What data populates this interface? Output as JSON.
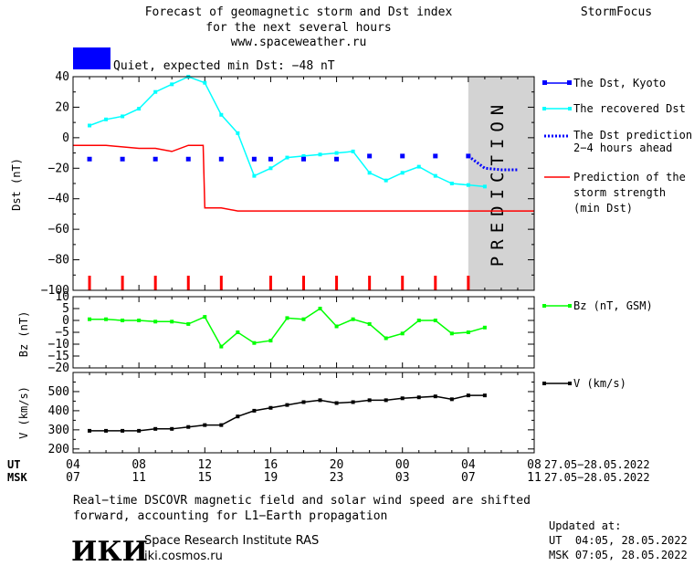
{
  "header": {
    "title_line1": "Forecast of geomagnetic storm and Dst index",
    "title_line2": "for the next several hours",
    "url": "www.spaceweather.ru",
    "brand": "StormFocus",
    "status_text": "Quiet, expected min Dst: −48 nT",
    "status_color": "#0000ff"
  },
  "prediction_label": "PREDICTION",
  "legend": {
    "dst_kyoto": "The Dst, Kyoto",
    "dst_recovered": "The recovered Dst",
    "dst_prediction_1": "The Dst prediction",
    "dst_prediction_2": "2−4 hours ahead",
    "storm_1": "Prediction of the",
    "storm_2": "storm strength",
    "storm_3": "(min Dst)",
    "bz": "Bz (nT, GSM)",
    "v": "V (km/s)"
  },
  "axes": {
    "dst_ylabel": "Dst (nT)",
    "bz_ylabel": "Bz (nT)",
    "v_ylabel": "V (km/s)",
    "ut_label": "UT",
    "msk_label": "MSK",
    "ut_ticks": [
      "04",
      "08",
      "12",
      "16",
      "20",
      "00",
      "04",
      "08"
    ],
    "msk_ticks": [
      "07",
      "11",
      "15",
      "19",
      "23",
      "03",
      "07",
      "11"
    ],
    "ut_date": "27.05−28.05.2022",
    "msk_date": "27.05−28.05.2022"
  },
  "footer": {
    "note_line1": "Real−time DSCOVR magnetic field and solar wind speed are shifted",
    "note_line2": "forward, accounting for L1−Earth propagation",
    "logo": "ИКИ",
    "institute": "Space Research Institute RAS",
    "site": "iki.cosmos.ru",
    "updated_label": "Updated at:",
    "updated_ut": "UT  04:05, 28.05.2022",
    "updated_msk": "MSK 07:05, 28.05.2022"
  },
  "colors": {
    "dst_kyoto": "#0000ff",
    "dst_recovered": "#00ffff",
    "dst_prediction": "#0000ff",
    "storm": "#ff0000",
    "bz": "#00ff00",
    "v": "#000000",
    "prediction_band": "#d3d3d3",
    "ticks": "#ff0000"
  },
  "chart_data": [
    {
      "type": "line",
      "ylabel": "Dst (nT)",
      "xlim": [
        4,
        32
      ],
      "ylim": [
        -100,
        40
      ],
      "prediction_band": [
        28.0,
        32.0
      ],
      "series": [
        {
          "name": "The Dst, Kyoto",
          "style": "markers",
          "x": [
            5,
            7,
            9,
            11,
            13,
            15,
            16,
            18,
            20,
            22,
            24,
            26,
            28
          ],
          "y": [
            -14,
            -14,
            -14,
            -14,
            -14,
            -14,
            -14,
            -14,
            -14,
            -12,
            -12,
            -12,
            -12
          ]
        },
        {
          "name": "The recovered Dst",
          "style": "line-markers",
          "x": [
            5,
            6,
            7,
            8,
            9,
            10,
            11,
            12,
            13,
            14,
            15,
            16,
            17,
            18,
            19,
            20,
            21,
            22,
            23,
            24,
            25,
            26,
            27,
            28,
            29
          ],
          "y": [
            8,
            12,
            14,
            19,
            30,
            35,
            40,
            36,
            15,
            3,
            -25,
            -20,
            -13,
            -12,
            -11,
            -10,
            -9,
            -23,
            -28,
            -23,
            -19,
            -25,
            -30,
            -31,
            -32
          ]
        },
        {
          "name": "The Dst prediction 2−4 hours ahead",
          "style": "dotted",
          "x": [
            28,
            29,
            30,
            31
          ],
          "y": [
            -12,
            -20,
            -21,
            -21
          ]
        },
        {
          "name": "Prediction of the storm strength (min Dst)",
          "style": "line",
          "x": [
            4,
            6,
            8,
            9,
            10,
            11,
            11.9,
            12,
            13,
            14,
            32
          ],
          "y": [
            -5,
            -5,
            -7,
            -7,
            -9,
            -5,
            -5,
            -46,
            -46,
            -48,
            -48
          ]
        }
      ],
      "storm_ticks": [
        5,
        7,
        9,
        11,
        13,
        16,
        18,
        20,
        22,
        24,
        26,
        28
      ]
    },
    {
      "type": "line",
      "ylabel": "Bz (nT)",
      "xlim": [
        4,
        32
      ],
      "ylim": [
        -20,
        10
      ],
      "series": [
        {
          "name": "Bz (nT, GSM)",
          "x": [
            5,
            6,
            7,
            8,
            9,
            10,
            11,
            12,
            13,
            14,
            15,
            16,
            17,
            18,
            19,
            20,
            21,
            22,
            23,
            24,
            25,
            26,
            27,
            28,
            29
          ],
          "y": [
            0.5,
            0.5,
            0,
            0,
            -0.5,
            -0.5,
            -1.5,
            1.5,
            -11,
            -5,
            -9.5,
            -8.5,
            1,
            0.5,
            5,
            -2.5,
            0.5,
            -1.5,
            -7.5,
            -5.5,
            0,
            0,
            -5.5,
            -5,
            -3
          ]
        }
      ]
    },
    {
      "type": "line",
      "ylabel": "V (km/s)",
      "xlim": [
        4,
        32
      ],
      "ylim": [
        180,
        600
      ],
      "series": [
        {
          "name": "V (km/s)",
          "x": [
            5,
            6,
            7,
            8,
            9,
            10,
            11,
            12,
            13,
            14,
            15,
            16,
            17,
            18,
            19,
            20,
            21,
            22,
            23,
            24,
            25,
            26,
            27,
            28,
            29
          ],
          "y": [
            295,
            295,
            295,
            295,
            305,
            305,
            315,
            325,
            325,
            370,
            400,
            415,
            430,
            445,
            455,
            440,
            445,
            455,
            455,
            465,
            470,
            475,
            460,
            480,
            480
          ]
        }
      ]
    }
  ]
}
